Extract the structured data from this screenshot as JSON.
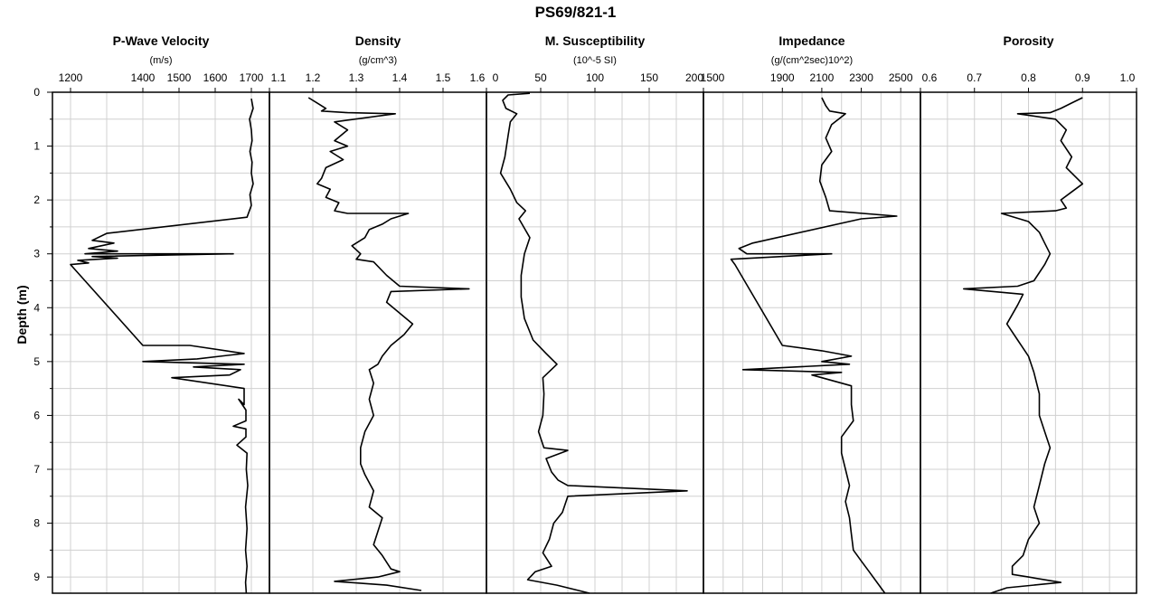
{
  "figure": {
    "title": "PS69/821-1"
  },
  "chart_data": {
    "type": "line",
    "title": "PS69/821-1",
    "ylabel": "Depth (m)",
    "ylim": [
      0,
      9.3
    ],
    "yticks": [
      0,
      1,
      2,
      3,
      4,
      5,
      6,
      7,
      8,
      9
    ],
    "y_inverted": true,
    "grid": true,
    "panels": [
      {
        "name": "P-Wave Velocity",
        "unit": "(m/s)",
        "xlim": [
          1150,
          1750
        ],
        "ticks": [
          {
            "v": 1200,
            "label": "1200"
          },
          {
            "v": 1400,
            "label": "1400"
          },
          {
            "v": 1500,
            "label": "1500"
          },
          {
            "v": 1600,
            "label": "1600"
          },
          {
            "v": 1700,
            "label": "1700"
          }
        ],
        "grid_x": [
          1200,
          1300,
          1400,
          1500,
          1600,
          1700
        ],
        "points": [
          [
            1700,
            0.12
          ],
          [
            1705,
            0.3
          ],
          [
            1695,
            0.5
          ],
          [
            1700,
            0.7
          ],
          [
            1702,
            0.9
          ],
          [
            1696,
            1.1
          ],
          [
            1702,
            1.3
          ],
          [
            1700,
            1.5
          ],
          [
            1705,
            1.7
          ],
          [
            1696,
            1.9
          ],
          [
            1700,
            2.1
          ],
          [
            1688,
            2.32
          ],
          [
            1300,
            2.62
          ],
          [
            1260,
            2.75
          ],
          [
            1320,
            2.8
          ],
          [
            1250,
            2.9
          ],
          [
            1330,
            2.95
          ],
          [
            1240,
            3.0
          ],
          [
            1300,
            3.0
          ],
          [
            1650,
            3.0
          ],
          [
            1260,
            3.05
          ],
          [
            1330,
            3.08
          ],
          [
            1220,
            3.12
          ],
          [
            1250,
            3.17
          ],
          [
            1200,
            3.2
          ],
          [
            1400,
            4.7
          ],
          [
            1530,
            4.7
          ],
          [
            1680,
            4.85
          ],
          [
            1550,
            4.95
          ],
          [
            1400,
            5.0
          ],
          [
            1680,
            5.05
          ],
          [
            1540,
            5.1
          ],
          [
            1670,
            5.15
          ],
          [
            1640,
            5.25
          ],
          [
            1480,
            5.3
          ],
          [
            1680,
            5.5
          ],
          [
            1680,
            5.8
          ],
          [
            1665,
            5.7
          ],
          [
            1685,
            5.9
          ],
          [
            1685,
            6.1
          ],
          [
            1650,
            6.2
          ],
          [
            1685,
            6.25
          ],
          [
            1685,
            6.4
          ],
          [
            1660,
            6.55
          ],
          [
            1688,
            6.7
          ],
          [
            1686,
            7.0
          ],
          [
            1690,
            7.3
          ],
          [
            1684,
            7.7
          ],
          [
            1688,
            8.1
          ],
          [
            1684,
            8.5
          ],
          [
            1688,
            8.8
          ],
          [
            1684,
            9.1
          ],
          [
            1686,
            9.3
          ]
        ]
      },
      {
        "name": "Density",
        "unit": "(g/cm^3)",
        "xlim": [
          1.1,
          1.6
        ],
        "ticks": [
          {
            "v": 1.1,
            "label": "1.1"
          },
          {
            "v": 1.2,
            "label": "1.2"
          },
          {
            "v": 1.3,
            "label": "1.3"
          },
          {
            "v": 1.4,
            "label": "1.4"
          },
          {
            "v": 1.5,
            "label": "1.5"
          },
          {
            "v": 1.6,
            "label": "1.6"
          }
        ],
        "grid_x": [
          1.2,
          1.3,
          1.4,
          1.5
        ],
        "points": [
          [
            1.19,
            0.1
          ],
          [
            1.21,
            0.2
          ],
          [
            1.23,
            0.3
          ],
          [
            1.22,
            0.35
          ],
          [
            1.28,
            0.38
          ],
          [
            1.39,
            0.4
          ],
          [
            1.25,
            0.55
          ],
          [
            1.28,
            0.7
          ],
          [
            1.25,
            0.9
          ],
          [
            1.28,
            1.0
          ],
          [
            1.24,
            1.1
          ],
          [
            1.27,
            1.25
          ],
          [
            1.23,
            1.4
          ],
          [
            1.22,
            1.6
          ],
          [
            1.21,
            1.7
          ],
          [
            1.24,
            1.8
          ],
          [
            1.23,
            1.95
          ],
          [
            1.26,
            2.05
          ],
          [
            1.25,
            2.2
          ],
          [
            1.28,
            2.25
          ],
          [
            1.42,
            2.25
          ],
          [
            1.38,
            2.35
          ],
          [
            1.36,
            2.45
          ],
          [
            1.33,
            2.55
          ],
          [
            1.32,
            2.7
          ],
          [
            1.29,
            2.85
          ],
          [
            1.31,
            3.0
          ],
          [
            1.3,
            3.1
          ],
          [
            1.34,
            3.15
          ],
          [
            1.37,
            3.4
          ],
          [
            1.4,
            3.6
          ],
          [
            1.56,
            3.65
          ],
          [
            1.38,
            3.7
          ],
          [
            1.37,
            3.9
          ],
          [
            1.4,
            4.1
          ],
          [
            1.43,
            4.3
          ],
          [
            1.41,
            4.5
          ],
          [
            1.38,
            4.7
          ],
          [
            1.36,
            4.9
          ],
          [
            1.35,
            5.05
          ],
          [
            1.33,
            5.15
          ],
          [
            1.34,
            5.4
          ],
          [
            1.33,
            5.7
          ],
          [
            1.34,
            6.0
          ],
          [
            1.32,
            6.3
          ],
          [
            1.31,
            6.6
          ],
          [
            1.31,
            6.9
          ],
          [
            1.32,
            7.1
          ],
          [
            1.34,
            7.4
          ],
          [
            1.33,
            7.7
          ],
          [
            1.36,
            7.9
          ],
          [
            1.35,
            8.15
          ],
          [
            1.34,
            8.4
          ],
          [
            1.36,
            8.6
          ],
          [
            1.38,
            8.85
          ],
          [
            1.4,
            8.9
          ],
          [
            1.35,
            9.0
          ],
          [
            1.25,
            9.08
          ],
          [
            1.37,
            9.15
          ],
          [
            1.45,
            9.25
          ]
        ]
      },
      {
        "name": "M. Susceptibility",
        "unit": "(10^-5 SI)",
        "xlim": [
          0,
          200
        ],
        "ticks": [
          {
            "v": 0,
            "label": "0"
          },
          {
            "v": 50,
            "label": "50"
          },
          {
            "v": 100,
            "label": "100"
          },
          {
            "v": 150,
            "label": "150"
          },
          {
            "v": 200,
            "label": "200"
          }
        ],
        "grid_x": [
          25,
          50,
          75,
          100,
          125,
          150,
          175
        ],
        "points": [
          [
            40,
            0.02
          ],
          [
            20,
            0.05
          ],
          [
            15,
            0.15
          ],
          [
            18,
            0.3
          ],
          [
            28,
            0.4
          ],
          [
            22,
            0.55
          ],
          [
            20,
            0.8
          ],
          [
            17,
            1.2
          ],
          [
            13,
            1.5
          ],
          [
            22,
            1.8
          ],
          [
            28,
            2.05
          ],
          [
            36,
            2.2
          ],
          [
            30,
            2.35
          ],
          [
            40,
            2.7
          ],
          [
            35,
            3.0
          ],
          [
            32,
            3.4
          ],
          [
            32,
            3.8
          ],
          [
            35,
            4.2
          ],
          [
            43,
            4.6
          ],
          [
            55,
            4.85
          ],
          [
            65,
            5.05
          ],
          [
            52,
            5.3
          ],
          [
            53,
            5.6
          ],
          [
            52,
            6.0
          ],
          [
            48,
            6.3
          ],
          [
            53,
            6.6
          ],
          [
            75,
            6.65
          ],
          [
            55,
            6.8
          ],
          [
            60,
            7.05
          ],
          [
            66,
            7.2
          ],
          [
            75,
            7.3
          ],
          [
            185,
            7.4
          ],
          [
            75,
            7.5
          ],
          [
            70,
            7.8
          ],
          [
            62,
            8.0
          ],
          [
            58,
            8.3
          ],
          [
            52,
            8.55
          ],
          [
            60,
            8.8
          ],
          [
            45,
            8.9
          ],
          [
            38,
            9.05
          ],
          [
            65,
            9.15
          ],
          [
            95,
            9.3
          ]
        ]
      },
      {
        "name": "Impedance",
        "unit": "(g/(cm^2sec)10^2)",
        "xlim": [
          1500,
          2600
        ],
        "ticks": [
          {
            "v": 1500,
            "label": "1500"
          },
          {
            "v": 1900,
            "label": "1900"
          },
          {
            "v": 2100,
            "label": "2100"
          },
          {
            "v": 2300,
            "label": "2300"
          },
          {
            "v": 2500,
            "label": "2500"
          }
        ],
        "grid_x": [
          1600,
          1700,
          1800,
          1900,
          2000,
          2100,
          2200,
          2300,
          2400,
          2500
        ],
        "points": [
          [
            2100,
            0.1
          ],
          [
            2120,
            0.25
          ],
          [
            2140,
            0.35
          ],
          [
            2220,
            0.4
          ],
          [
            2150,
            0.6
          ],
          [
            2120,
            0.85
          ],
          [
            2150,
            1.1
          ],
          [
            2100,
            1.35
          ],
          [
            2090,
            1.65
          ],
          [
            2120,
            1.95
          ],
          [
            2140,
            2.2
          ],
          [
            2480,
            2.3
          ],
          [
            2300,
            2.35
          ],
          [
            1750,
            2.8
          ],
          [
            1680,
            2.9
          ],
          [
            1720,
            3.0
          ],
          [
            2150,
            3.0
          ],
          [
            1640,
            3.1
          ],
          [
            1660,
            3.2
          ],
          [
            1900,
            4.7
          ],
          [
            2100,
            4.8
          ],
          [
            2250,
            4.9
          ],
          [
            2100,
            5.0
          ],
          [
            2240,
            5.05
          ],
          [
            1700,
            5.15
          ],
          [
            2200,
            5.2
          ],
          [
            2050,
            5.25
          ],
          [
            2250,
            5.45
          ],
          [
            2250,
            5.8
          ],
          [
            2260,
            6.1
          ],
          [
            2200,
            6.4
          ],
          [
            2200,
            6.7
          ],
          [
            2220,
            7.0
          ],
          [
            2240,
            7.3
          ],
          [
            2220,
            7.6
          ],
          [
            2240,
            7.9
          ],
          [
            2250,
            8.2
          ],
          [
            2260,
            8.5
          ],
          [
            2300,
            8.7
          ],
          [
            2340,
            8.9
          ],
          [
            2420,
            9.3
          ]
        ]
      },
      {
        "name": "Porosity",
        "unit": "",
        "xlim": [
          0.6,
          1.0
        ],
        "ticks": [
          {
            "v": 0.6,
            "label": "0.6"
          },
          {
            "v": 0.7,
            "label": "0.7"
          },
          {
            "v": 0.8,
            "label": "0.8"
          },
          {
            "v": 0.9,
            "label": "0.9"
          },
          {
            "v": 1.0,
            "label": "1.0"
          }
        ],
        "grid_x": [
          0.65,
          0.7,
          0.75,
          0.8,
          0.85,
          0.9,
          0.95
        ],
        "points": [
          [
            0.9,
            0.1
          ],
          [
            0.88,
            0.2
          ],
          [
            0.86,
            0.3
          ],
          [
            0.84,
            0.38
          ],
          [
            0.78,
            0.4
          ],
          [
            0.85,
            0.5
          ],
          [
            0.87,
            0.7
          ],
          [
            0.86,
            0.9
          ],
          [
            0.88,
            1.2
          ],
          [
            0.87,
            1.4
          ],
          [
            0.89,
            1.6
          ],
          [
            0.9,
            1.7
          ],
          [
            0.88,
            1.85
          ],
          [
            0.86,
            2.0
          ],
          [
            0.87,
            2.15
          ],
          [
            0.85,
            2.2
          ],
          [
            0.75,
            2.25
          ],
          [
            0.8,
            2.4
          ],
          [
            0.82,
            2.6
          ],
          [
            0.83,
            2.8
          ],
          [
            0.84,
            3.0
          ],
          [
            0.83,
            3.2
          ],
          [
            0.81,
            3.5
          ],
          [
            0.78,
            3.6
          ],
          [
            0.68,
            3.65
          ],
          [
            0.79,
            3.75
          ],
          [
            0.78,
            3.95
          ],
          [
            0.76,
            4.3
          ],
          [
            0.78,
            4.6
          ],
          [
            0.8,
            4.9
          ],
          [
            0.81,
            5.2
          ],
          [
            0.82,
            5.6
          ],
          [
            0.82,
            6.0
          ],
          [
            0.83,
            6.3
          ],
          [
            0.84,
            6.6
          ],
          [
            0.83,
            6.9
          ],
          [
            0.82,
            7.3
          ],
          [
            0.81,
            7.7
          ],
          [
            0.82,
            8.0
          ],
          [
            0.8,
            8.3
          ],
          [
            0.79,
            8.6
          ],
          [
            0.77,
            8.8
          ],
          [
            0.77,
            8.95
          ],
          [
            0.8,
            9.0
          ],
          [
            0.86,
            9.1
          ],
          [
            0.76,
            9.2
          ],
          [
            0.73,
            9.3
          ]
        ]
      }
    ]
  }
}
